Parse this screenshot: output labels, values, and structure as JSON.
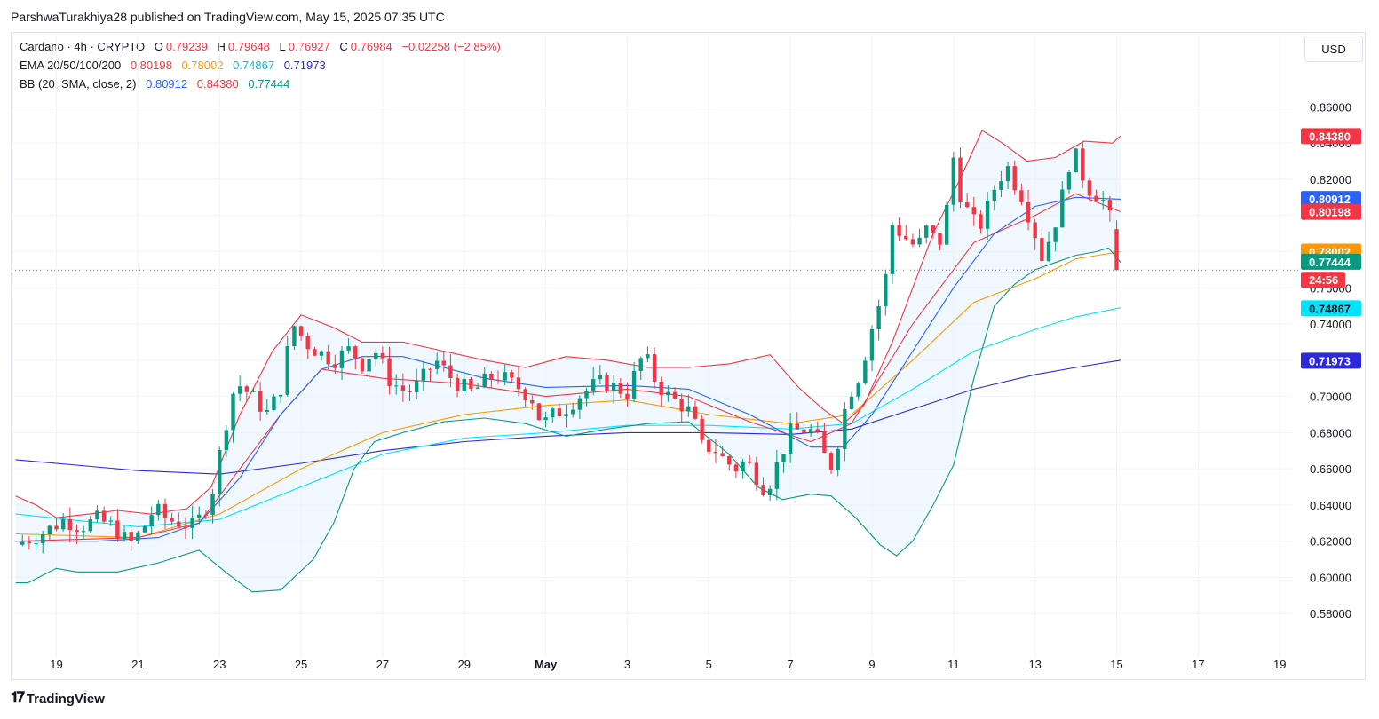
{
  "header": {
    "publisher_line": "ParshwaTurakhiya28 published on TradingView.com, May 15, 2025 07:35 UTC"
  },
  "legend": {
    "symbol": "Cardano · 4h · CRYPTO",
    "o_label": "O",
    "o_value": "0.79239",
    "h_label": "H",
    "h_value": "0.79648",
    "l_label": "L",
    "l_value": "0.76927",
    "c_label": "C",
    "c_value": "0.76984",
    "change": "−0.02258 (−2.85%)",
    "ema_label": "EMA 20/50/100/200",
    "ema_values": [
      "0.80198",
      "0.78002",
      "0.74867",
      "0.71973"
    ],
    "bb_label": "BB (20, SMA, close, 2)",
    "bb_values": [
      "0.80912",
      "0.84380",
      "0.77444"
    ]
  },
  "currency": "USD",
  "countdown": "24:56",
  "brand": "TradingView",
  "colors": {
    "up": "#089981",
    "down": "#f23645",
    "ema20": "#f23645",
    "ema50": "#ff9800",
    "ema100": "#00e5ff",
    "ema200": "#2a2ad8",
    "bb_basis": "#2962ff",
    "bb_upper": "#f23645",
    "bb_lower": "#089981",
    "bb_fill": "#e3f2fd"
  },
  "chart_data": {
    "type": "candlestick",
    "ylim": [
      0.56,
      0.87
    ],
    "y_ticks": [
      "0.58000",
      "0.60000",
      "0.62000",
      "0.64000",
      "0.66000",
      "0.68000",
      "0.70000",
      "0.72000",
      "0.74000",
      "0.76000",
      "0.78000",
      "0.80000",
      "0.82000",
      "0.84000",
      "0.86000"
    ],
    "x_ticks": [
      {
        "label": "19",
        "day": 0
      },
      {
        "label": "21",
        "day": 2
      },
      {
        "label": "23",
        "day": 4
      },
      {
        "label": "25",
        "day": 6
      },
      {
        "label": "27",
        "day": 8
      },
      {
        "label": "29",
        "day": 10
      },
      {
        "label": "May",
        "day": 12,
        "bold": true
      },
      {
        "label": "3",
        "day": 14
      },
      {
        "label": "5",
        "day": 16
      },
      {
        "label": "7",
        "day": 18
      },
      {
        "label": "9",
        "day": 20
      },
      {
        "label": "11",
        "day": 22
      },
      {
        "label": "13",
        "day": 24
      },
      {
        "label": "15",
        "day": 26
      },
      {
        "label": "17",
        "day": 28
      },
      {
        "label": "19",
        "day": 30
      }
    ],
    "x_range_days": [
      -1.1,
      30.3
    ],
    "current_price": 0.76984,
    "price_labels": [
      {
        "value": 0.8438,
        "text": "0.84380",
        "color": "#f23645"
      },
      {
        "value": 0.80912,
        "text": "0.80912",
        "color": "#2962ff"
      },
      {
        "value": 0.80198,
        "text": "0.80198",
        "color": "#f23645"
      },
      {
        "value": 0.78002,
        "text": "0.78002",
        "color": "#ff9800"
      },
      {
        "value": 0.77444,
        "text": "0.77444",
        "color": "#089981"
      },
      {
        "value": 0.74867,
        "text": "0.74867",
        "color": "#00e5ff"
      },
      {
        "value": 0.71973,
        "text": "0.71973",
        "color": "#2a2ad8"
      }
    ],
    "close_path": [
      [
        -1.0,
        0.618
      ],
      [
        -0.3,
        0.625
      ],
      [
        0.2,
        0.632
      ],
      [
        0.6,
        0.628
      ],
      [
        1.0,
        0.632
      ],
      [
        1.4,
        0.628
      ],
      [
        1.8,
        0.618
      ],
      [
        2.1,
        0.626
      ],
      [
        2.4,
        0.638
      ],
      [
        2.7,
        0.632
      ],
      [
        3.1,
        0.63
      ],
      [
        3.4,
        0.628
      ],
      [
        3.8,
        0.645
      ],
      [
        4.0,
        0.668
      ],
      [
        4.2,
        0.69
      ],
      [
        4.4,
        0.708
      ],
      [
        4.8,
        0.7
      ],
      [
        5.2,
        0.69
      ],
      [
        5.5,
        0.705
      ],
      [
        5.8,
        0.74
      ],
      [
        6.1,
        0.73
      ],
      [
        6.4,
        0.725
      ],
      [
        6.8,
        0.72
      ],
      [
        7.2,
        0.726
      ],
      [
        7.5,
        0.718
      ],
      [
        7.8,
        0.726
      ],
      [
        8.2,
        0.708
      ],
      [
        8.6,
        0.702
      ],
      [
        8.9,
        0.707
      ],
      [
        9.3,
        0.72
      ],
      [
        9.6,
        0.712
      ],
      [
        9.9,
        0.706
      ],
      [
        10.2,
        0.702
      ],
      [
        10.5,
        0.708
      ],
      [
        10.8,
        0.712
      ],
      [
        11.1,
        0.708
      ],
      [
        11.4,
        0.704
      ],
      [
        11.7,
        0.698
      ],
      [
        11.9,
        0.684
      ],
      [
        12.2,
        0.69
      ],
      [
        12.5,
        0.694
      ],
      [
        12.8,
        0.7
      ],
      [
        13.1,
        0.705
      ],
      [
        13.4,
        0.708
      ],
      [
        13.7,
        0.705
      ],
      [
        14.0,
        0.702
      ],
      [
        14.4,
        0.724
      ],
      [
        14.7,
        0.708
      ],
      [
        15.0,
        0.7
      ],
      [
        15.3,
        0.696
      ],
      [
        15.6,
        0.69
      ],
      [
        15.8,
        0.672
      ],
      [
        16.1,
        0.672
      ],
      [
        16.4,
        0.664
      ],
      [
        16.7,
        0.66
      ],
      [
        16.9,
        0.665
      ],
      [
        17.2,
        0.655
      ],
      [
        17.4,
        0.648
      ],
      [
        17.6,
        0.658
      ],
      [
        17.8,
        0.67
      ],
      [
        18.0,
        0.68
      ],
      [
        18.3,
        0.682
      ],
      [
        18.6,
        0.68
      ],
      [
        18.8,
        0.668
      ],
      [
        19.0,
        0.662
      ],
      [
        19.2,
        0.678
      ],
      [
        19.4,
        0.7
      ],
      [
        19.7,
        0.712
      ],
      [
        20.0,
        0.738
      ],
      [
        20.3,
        0.76
      ],
      [
        20.5,
        0.795
      ],
      [
        20.8,
        0.788
      ],
      [
        21.1,
        0.782
      ],
      [
        21.4,
        0.795
      ],
      [
        21.6,
        0.78
      ],
      [
        21.8,
        0.798
      ],
      [
        22.0,
        0.832
      ],
      [
        22.2,
        0.808
      ],
      [
        22.4,
        0.8
      ],
      [
        22.6,
        0.792
      ],
      [
        22.8,
        0.802
      ],
      [
        23.0,
        0.815
      ],
      [
        23.3,
        0.828
      ],
      [
        23.5,
        0.818
      ],
      [
        23.7,
        0.81
      ],
      [
        24.0,
        0.79
      ],
      [
        24.2,
        0.775
      ],
      [
        24.4,
        0.792
      ],
      [
        24.6,
        0.802
      ],
      [
        24.8,
        0.828
      ],
      [
        25.0,
        0.832
      ],
      [
        25.2,
        0.82
      ],
      [
        25.4,
        0.812
      ],
      [
        25.6,
        0.812
      ],
      [
        25.8,
        0.8
      ],
      [
        25.95,
        0.792
      ],
      [
        26.05,
        0.77
      ]
    ],
    "ema20": [
      [
        -1.0,
        0.62
      ],
      [
        2.0,
        0.622
      ],
      [
        3.5,
        0.63
      ],
      [
        4.5,
        0.66
      ],
      [
        5.5,
        0.69
      ],
      [
        6.5,
        0.715
      ],
      [
        8.0,
        0.71
      ],
      [
        10.0,
        0.707
      ],
      [
        12.0,
        0.7
      ],
      [
        14.0,
        0.704
      ],
      [
        15.5,
        0.7
      ],
      [
        17.0,
        0.686
      ],
      [
        18.5,
        0.675
      ],
      [
        19.5,
        0.685
      ],
      [
        21.0,
        0.74
      ],
      [
        22.5,
        0.785
      ],
      [
        24.0,
        0.8
      ],
      [
        25.0,
        0.812
      ],
      [
        26.1,
        0.802
      ]
    ],
    "ema50": [
      [
        -1.0,
        0.624
      ],
      [
        2.0,
        0.622
      ],
      [
        4.0,
        0.635
      ],
      [
        6.0,
        0.66
      ],
      [
        8.0,
        0.68
      ],
      [
        10.0,
        0.69
      ],
      [
        12.0,
        0.695
      ],
      [
        14.0,
        0.698
      ],
      [
        16.0,
        0.69
      ],
      [
        18.0,
        0.685
      ],
      [
        19.5,
        0.69
      ],
      [
        21.0,
        0.72
      ],
      [
        22.5,
        0.752
      ],
      [
        24.0,
        0.765
      ],
      [
        25.0,
        0.776
      ],
      [
        26.1,
        0.78
      ]
    ],
    "ema100": [
      [
        -1.0,
        0.635
      ],
      [
        2.0,
        0.628
      ],
      [
        4.0,
        0.632
      ],
      [
        6.0,
        0.65
      ],
      [
        8.0,
        0.668
      ],
      [
        10.0,
        0.677
      ],
      [
        12.0,
        0.68
      ],
      [
        14.0,
        0.684
      ],
      [
        16.0,
        0.684
      ],
      [
        18.0,
        0.682
      ],
      [
        19.5,
        0.685
      ],
      [
        21.0,
        0.704
      ],
      [
        22.5,
        0.725
      ],
      [
        24.0,
        0.737
      ],
      [
        25.0,
        0.744
      ],
      [
        26.1,
        0.749
      ]
    ],
    "ema200": [
      [
        -1.0,
        0.665
      ],
      [
        2.0,
        0.659
      ],
      [
        4.0,
        0.657
      ],
      [
        6.0,
        0.663
      ],
      [
        8.0,
        0.67
      ],
      [
        10.0,
        0.675
      ],
      [
        12.0,
        0.678
      ],
      [
        14.0,
        0.68
      ],
      [
        16.0,
        0.68
      ],
      [
        18.0,
        0.679
      ],
      [
        19.5,
        0.682
      ],
      [
        21.0,
        0.693
      ],
      [
        22.5,
        0.704
      ],
      [
        24.0,
        0.712
      ],
      [
        25.0,
        0.716
      ],
      [
        26.1,
        0.72
      ]
    ],
    "bb_basis": [
      [
        -1.0,
        0.62
      ],
      [
        1.0,
        0.62
      ],
      [
        2.5,
        0.622
      ],
      [
        3.5,
        0.63
      ],
      [
        4.5,
        0.655
      ],
      [
        5.5,
        0.69
      ],
      [
        6.5,
        0.715
      ],
      [
        7.5,
        0.722
      ],
      [
        8.5,
        0.722
      ],
      [
        10.5,
        0.71
      ],
      [
        12.0,
        0.705
      ],
      [
        14.0,
        0.706
      ],
      [
        15.5,
        0.704
      ],
      [
        17.0,
        0.69
      ],
      [
        18.5,
        0.672
      ],
      [
        19.3,
        0.672
      ],
      [
        20.0,
        0.69
      ],
      [
        21.0,
        0.725
      ],
      [
        22.0,
        0.76
      ],
      [
        23.0,
        0.79
      ],
      [
        24.0,
        0.805
      ],
      [
        25.0,
        0.81
      ],
      [
        26.1,
        0.809
      ]
    ],
    "bb_upper": [
      [
        -1.0,
        0.645
      ],
      [
        -0.5,
        0.64
      ],
      [
        0.0,
        0.633
      ],
      [
        0.8,
        0.635
      ],
      [
        1.5,
        0.637
      ],
      [
        2.3,
        0.635
      ],
      [
        3.2,
        0.638
      ],
      [
        3.8,
        0.65
      ],
      [
        4.5,
        0.69
      ],
      [
        5.3,
        0.725
      ],
      [
        6.0,
        0.745
      ],
      [
        6.8,
        0.738
      ],
      [
        7.5,
        0.73
      ],
      [
        8.5,
        0.73
      ],
      [
        9.5,
        0.725
      ],
      [
        10.5,
        0.72
      ],
      [
        11.5,
        0.716
      ],
      [
        12.5,
        0.722
      ],
      [
        13.5,
        0.72
      ],
      [
        14.5,
        0.716
      ],
      [
        15.5,
        0.716
      ],
      [
        16.5,
        0.718
      ],
      [
        17.5,
        0.723
      ],
      [
        18.2,
        0.705
      ],
      [
        18.8,
        0.693
      ],
      [
        19.3,
        0.685
      ],
      [
        19.8,
        0.695
      ],
      [
        20.5,
        0.73
      ],
      [
        21.5,
        0.79
      ],
      [
        22.2,
        0.822
      ],
      [
        22.7,
        0.847
      ],
      [
        23.2,
        0.84
      ],
      [
        23.8,
        0.83
      ],
      [
        24.5,
        0.832
      ],
      [
        25.2,
        0.841
      ],
      [
        25.9,
        0.84
      ],
      [
        26.1,
        0.844
      ]
    ],
    "bb_lower": [
      [
        -1.0,
        0.597
      ],
      [
        -0.7,
        0.597
      ],
      [
        0.0,
        0.605
      ],
      [
        0.5,
        0.603
      ],
      [
        1.5,
        0.603
      ],
      [
        2.5,
        0.608
      ],
      [
        3.5,
        0.615
      ],
      [
        4.2,
        0.602
      ],
      [
        4.8,
        0.592
      ],
      [
        5.5,
        0.593
      ],
      [
        6.3,
        0.61
      ],
      [
        6.8,
        0.63
      ],
      [
        7.3,
        0.66
      ],
      [
        7.8,
        0.675
      ],
      [
        8.5,
        0.68
      ],
      [
        9.5,
        0.686
      ],
      [
        10.5,
        0.688
      ],
      [
        11.5,
        0.685
      ],
      [
        12.5,
        0.678
      ],
      [
        13.5,
        0.682
      ],
      [
        14.5,
        0.685
      ],
      [
        15.5,
        0.686
      ],
      [
        16.5,
        0.668
      ],
      [
        17.2,
        0.65
      ],
      [
        17.8,
        0.643
      ],
      [
        18.5,
        0.646
      ],
      [
        19.0,
        0.645
      ],
      [
        19.6,
        0.633
      ],
      [
        20.2,
        0.618
      ],
      [
        20.6,
        0.612
      ],
      [
        21.0,
        0.62
      ],
      [
        21.5,
        0.64
      ],
      [
        22.0,
        0.662
      ],
      [
        22.5,
        0.71
      ],
      [
        23.0,
        0.75
      ],
      [
        23.5,
        0.762
      ],
      [
        24.0,
        0.77
      ],
      [
        24.5,
        0.774
      ],
      [
        25.0,
        0.778
      ],
      [
        25.5,
        0.78
      ],
      [
        25.8,
        0.782
      ],
      [
        26.1,
        0.774
      ]
    ]
  }
}
